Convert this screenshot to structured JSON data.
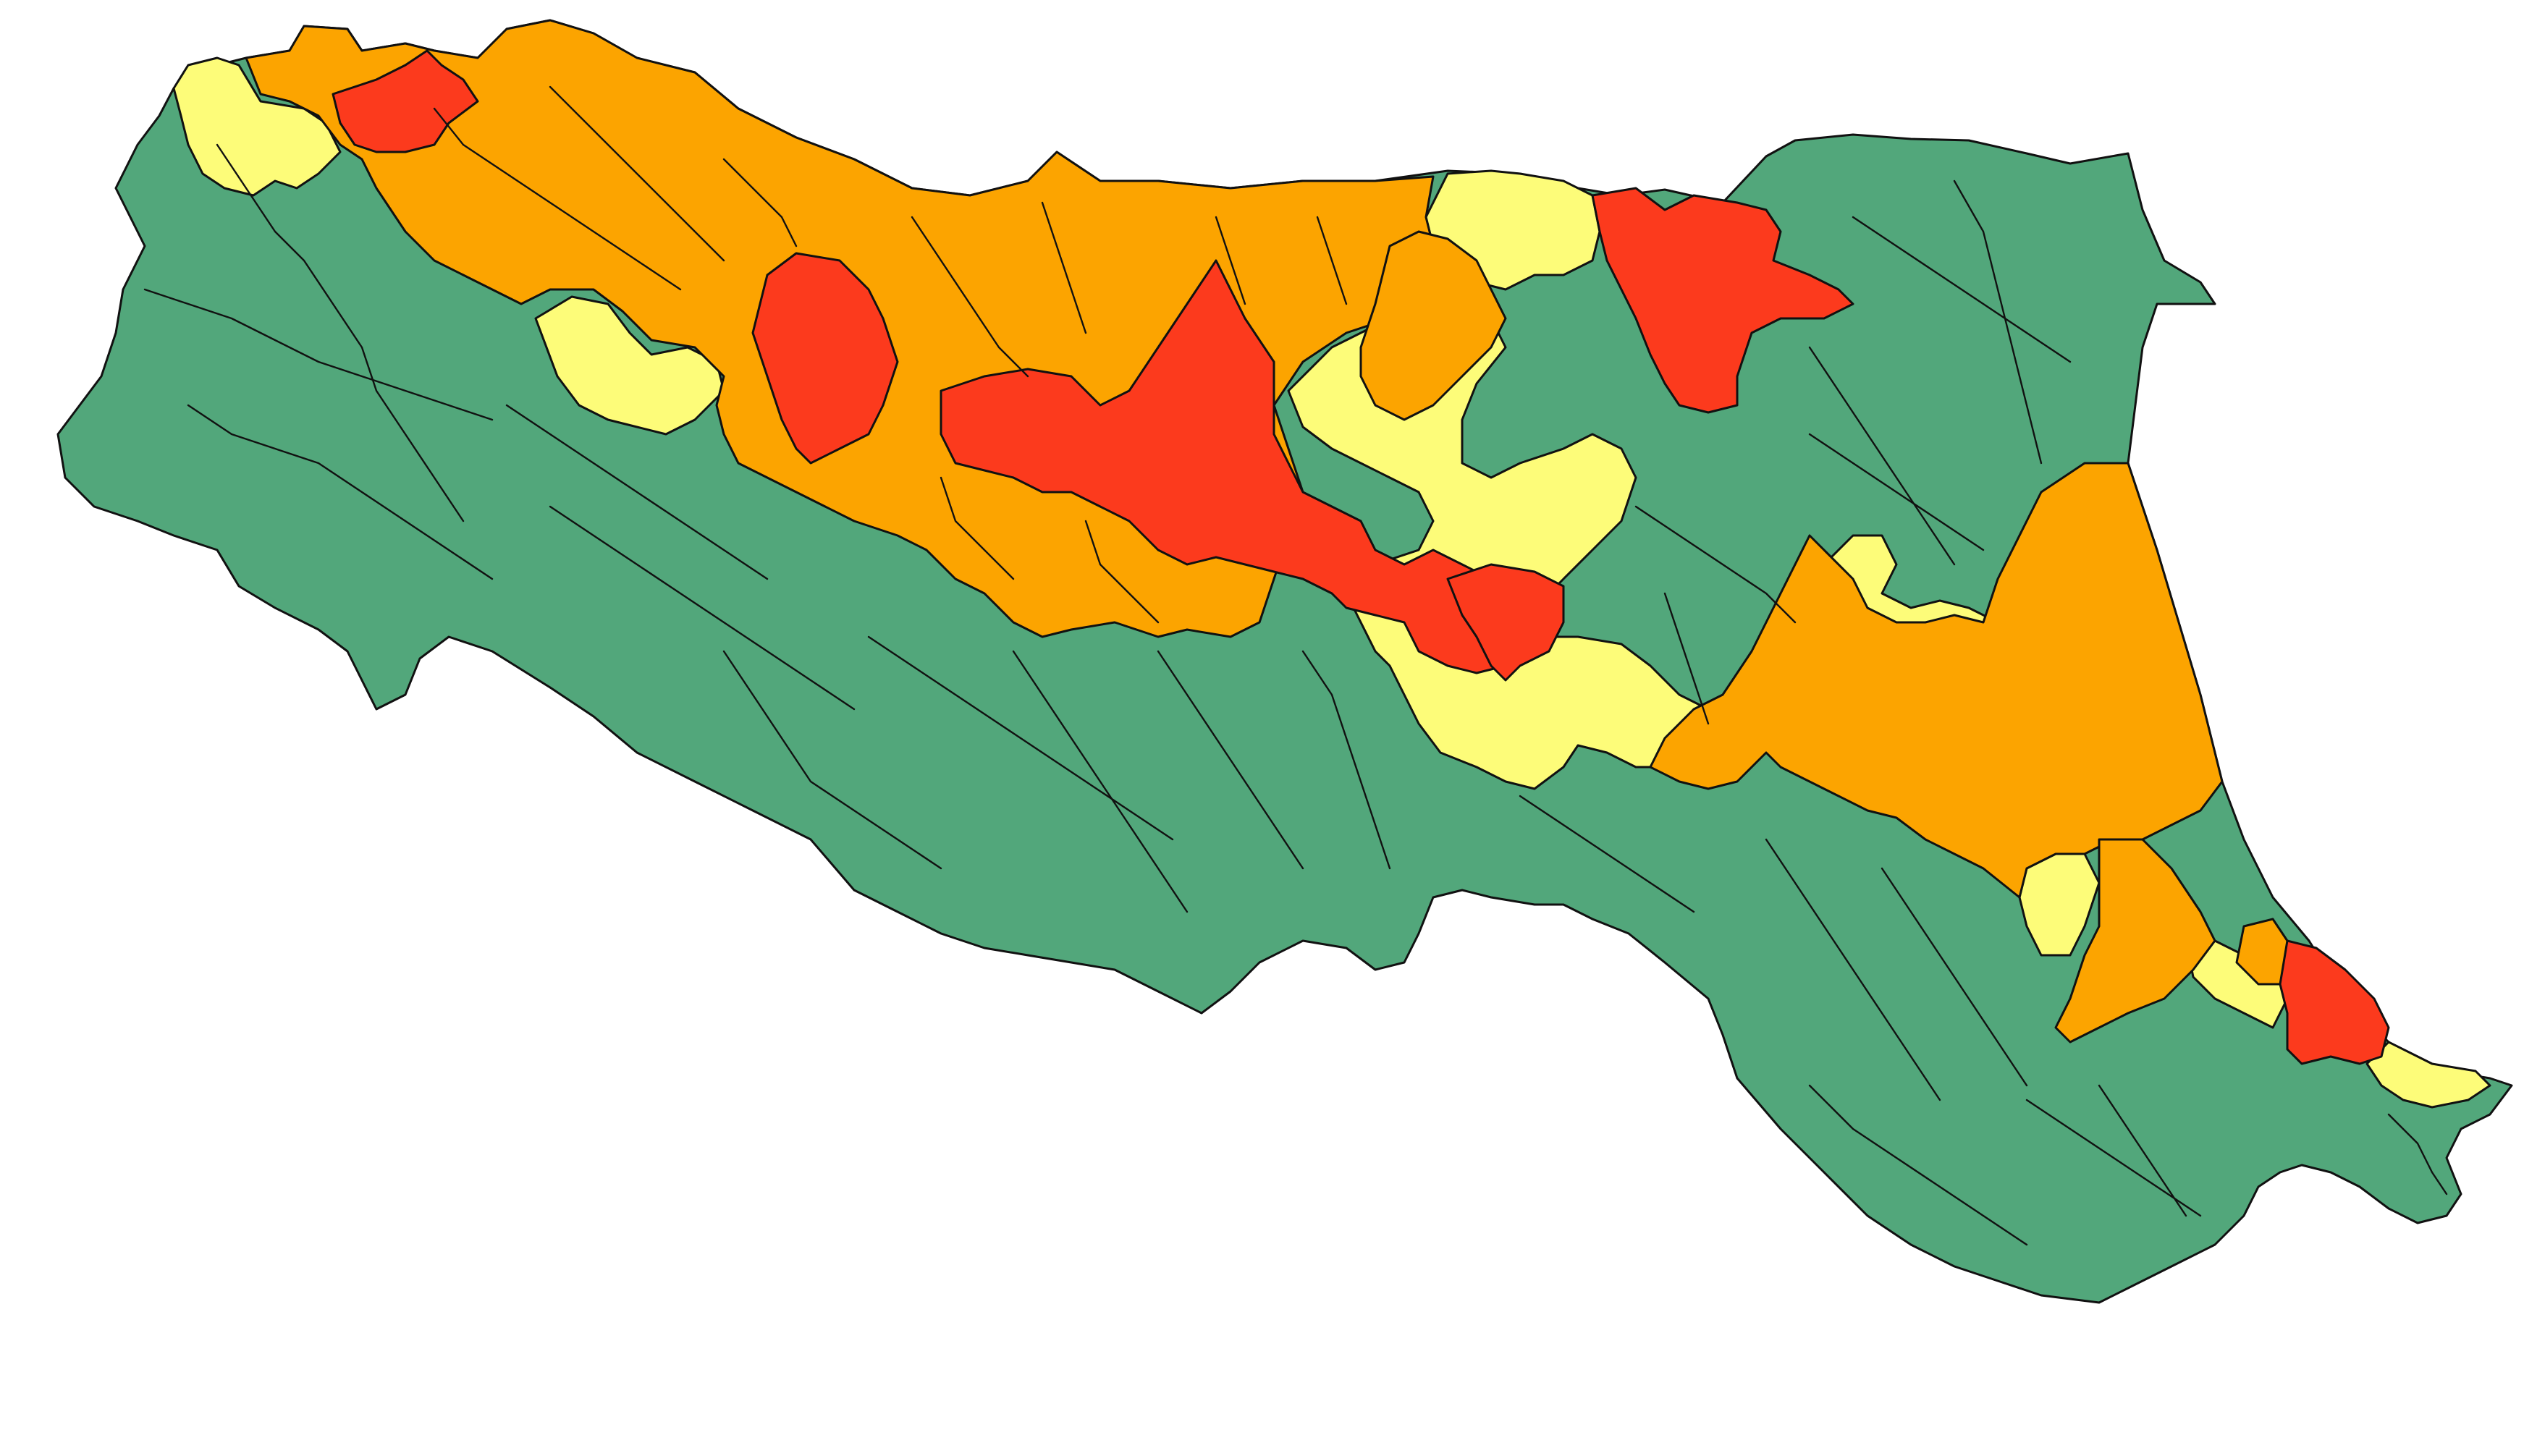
{
  "map": {
    "colors": {
      "green": "#52a77b",
      "yellow": "#fdfc79",
      "orange": "#fca400",
      "red": "#fc3a1d",
      "border": "#111111",
      "background": "#ffffff"
    }
  }
}
